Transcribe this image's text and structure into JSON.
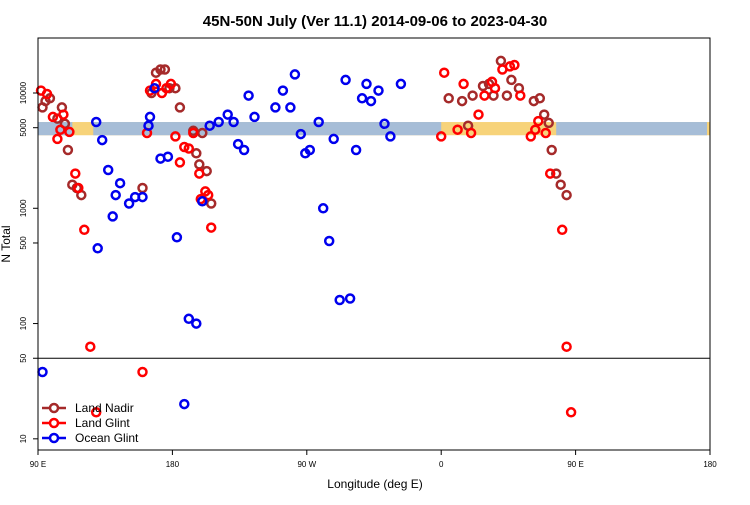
{
  "chart_data": {
    "type": "scatter",
    "title": "45N-50N July (Ver 11.1)   2014-09-06 to 2023-04-30",
    "xlabel": "Longitude (deg E)",
    "ylabel": "N Total",
    "x_tick_labels": [
      "90 E",
      "180",
      "90 W",
      "0",
      "90 E",
      "180"
    ],
    "x_ticks": [
      90,
      180,
      270,
      360,
      450,
      540
    ],
    "xlim": [
      90,
      540
    ],
    "yscale": "log",
    "y_tick_labels": [
      "10",
      "50",
      "100",
      "500",
      "1000",
      "5000",
      "10000"
    ],
    "y_ticks": [
      10,
      50,
      100,
      500,
      1000,
      5000,
      10000
    ],
    "ylim": [
      8,
      30000
    ],
    "reference_line_y": 50,
    "band": {
      "y_low": 4300,
      "y_high": 5600,
      "colors": {
        "sand": "#F7D37A",
        "blue": "#A6BDD7"
      }
    },
    "legend": {
      "position": "bottom-left",
      "entries": [
        "Land Nadir",
        "Land Glint",
        "Ocean Glint"
      ]
    },
    "series": [
      {
        "name": "Land Nadir",
        "color": "#A52A2A",
        "points": [
          [
            93,
            7500
          ],
          [
            95,
            8500
          ],
          [
            98,
            9000
          ],
          [
            103,
            6000
          ],
          [
            106,
            7500
          ],
          [
            108,
            5400
          ],
          [
            110,
            3200
          ],
          [
            113,
            1600
          ],
          [
            116,
            1500
          ],
          [
            119,
            1300
          ],
          [
            160,
            1500
          ],
          [
            166,
            10000
          ],
          [
            169,
            15000
          ],
          [
            172,
            16000
          ],
          [
            175,
            16000
          ],
          [
            178,
            11000
          ],
          [
            182,
            11000
          ],
          [
            185,
            7500
          ],
          [
            194,
            4700
          ],
          [
            196,
            3000
          ],
          [
            198,
            2400
          ],
          [
            200,
            4500
          ],
          [
            203,
            2100
          ],
          [
            206,
            1100
          ],
          [
            365,
            9000
          ],
          [
            374,
            8500
          ],
          [
            378,
            5200
          ],
          [
            381,
            9500
          ],
          [
            388,
            11500
          ],
          [
            392,
            12000
          ],
          [
            395,
            9500
          ],
          [
            400,
            19000
          ],
          [
            404,
            9500
          ],
          [
            407,
            13000
          ],
          [
            412,
            11000
          ],
          [
            422,
            8500
          ],
          [
            426,
            9000
          ],
          [
            429,
            6500
          ],
          [
            432,
            5500
          ],
          [
            434,
            3200
          ],
          [
            437,
            2000
          ],
          [
            440,
            1600
          ],
          [
            444,
            1300
          ]
        ]
      },
      {
        "name": "Land Glint",
        "color": "#FF0000",
        "points": [
          [
            92,
            10500
          ],
          [
            96,
            9800
          ],
          [
            100,
            6200
          ],
          [
            103,
            4000
          ],
          [
            105,
            4800
          ],
          [
            107,
            6500
          ],
          [
            111,
            4600
          ],
          [
            115,
            2000
          ],
          [
            117,
            1500
          ],
          [
            121,
            650
          ],
          [
            125,
            63
          ],
          [
            129,
            17
          ],
          [
            160,
            38
          ],
          [
            163,
            4500
          ],
          [
            165,
            10500
          ],
          [
            169,
            12000
          ],
          [
            173,
            10000
          ],
          [
            176,
            11000
          ],
          [
            179,
            12000
          ],
          [
            182,
            4200
          ],
          [
            185,
            2500
          ],
          [
            188,
            3400
          ],
          [
            191,
            3300
          ],
          [
            194,
            4500
          ],
          [
            198,
            2000
          ],
          [
            199,
            1200
          ],
          [
            202,
            1400
          ],
          [
            204,
            1300
          ],
          [
            206,
            680
          ],
          [
            360,
            4200
          ],
          [
            362,
            15000
          ],
          [
            371,
            4800
          ],
          [
            375,
            12000
          ],
          [
            380,
            4500
          ],
          [
            385,
            6500
          ],
          [
            389,
            9500
          ],
          [
            394,
            12500
          ],
          [
            396,
            11000
          ],
          [
            401,
            16000
          ],
          [
            406,
            17000
          ],
          [
            409,
            17500
          ],
          [
            413,
            9500
          ],
          [
            420,
            4200
          ],
          [
            423,
            4800
          ],
          [
            425,
            5700
          ],
          [
            430,
            4500
          ],
          [
            433,
            2000
          ],
          [
            441,
            650
          ],
          [
            444,
            63
          ],
          [
            447,
            17
          ]
        ]
      },
      {
        "name": "Ocean Glint",
        "color": "#0000EE",
        "points": [
          [
            93,
            38
          ],
          [
            140,
            850
          ],
          [
            145,
            1650
          ],
          [
            151,
            1100
          ],
          [
            155,
            1250
          ],
          [
            160,
            1250
          ],
          [
            164,
            5200
          ],
          [
            168,
            11000
          ],
          [
            129,
            5600
          ],
          [
            133,
            3900
          ],
          [
            137,
            2150
          ],
          [
            142,
            1300
          ],
          [
            130,
            450
          ],
          [
            177,
            2800
          ],
          [
            172,
            2700
          ],
          [
            165,
            6200
          ],
          [
            183,
            560
          ],
          [
            188,
            20
          ],
          [
            191,
            110
          ],
          [
            196,
            100
          ],
          [
            200,
            1150
          ],
          [
            205,
            5200
          ],
          [
            211,
            5600
          ],
          [
            217,
            6500
          ],
          [
            221,
            5600
          ],
          [
            224,
            3600
          ],
          [
            228,
            3200
          ],
          [
            231,
            9500
          ],
          [
            235,
            6200
          ],
          [
            249,
            7500
          ],
          [
            254,
            10500
          ],
          [
            259,
            7500
          ],
          [
            262,
            14500
          ],
          [
            266,
            4400
          ],
          [
            269,
            3000
          ],
          [
            272,
            3200
          ],
          [
            278,
            5600
          ],
          [
            281,
            1000
          ],
          [
            285,
            520
          ],
          [
            288,
            4000
          ],
          [
            292,
            160
          ],
          [
            296,
            13000
          ],
          [
            299,
            165
          ],
          [
            303,
            3200
          ],
          [
            307,
            9000
          ],
          [
            310,
            12000
          ],
          [
            313,
            8500
          ],
          [
            318,
            10500
          ],
          [
            322,
            5400
          ],
          [
            326,
            4200
          ],
          [
            333,
            12000
          ]
        ]
      }
    ]
  }
}
